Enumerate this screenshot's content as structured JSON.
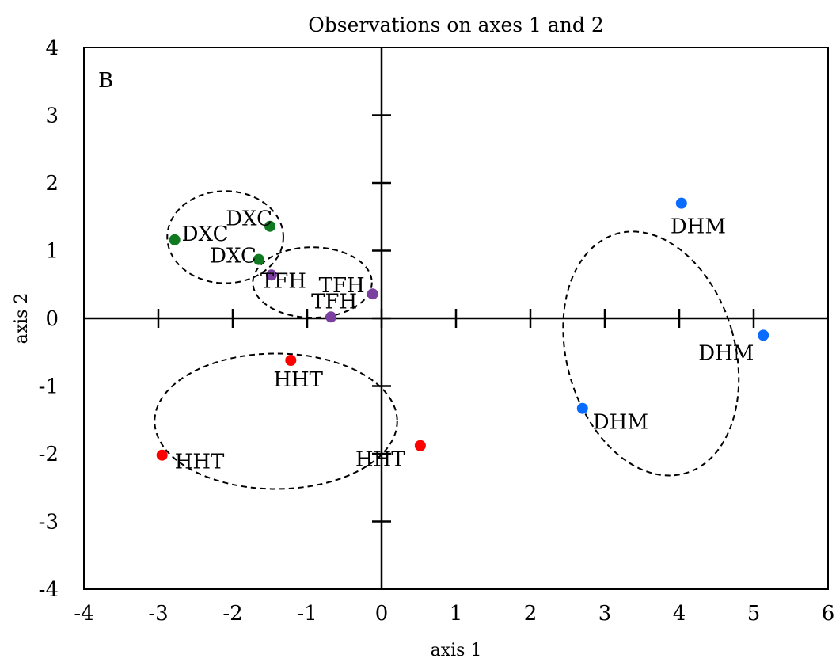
{
  "chart_data": {
    "type": "scatter",
    "title": "Observations on axes 1 and 2",
    "xlabel": "axis 1",
    "ylabel": "axis 2",
    "panel_label": "B",
    "xlim": [
      -4,
      6
    ],
    "ylim": [
      -4,
      4
    ],
    "xticks": [
      "-4",
      "-3",
      "-2",
      "-1",
      "0",
      "1",
      "2",
      "3",
      "4",
      "5",
      "6"
    ],
    "yticks": [
      "4",
      "3",
      "2",
      "1",
      "0",
      "-1",
      "-2",
      "-3",
      "-4"
    ],
    "xtick_values": [
      -4,
      -3,
      -2,
      -1,
      0,
      1,
      2,
      3,
      4,
      5,
      6
    ],
    "ytick_values": [
      4,
      3,
      2,
      1,
      0,
      -1,
      -2,
      -3,
      -4
    ],
    "grid": false,
    "points": [
      {
        "label": "DXC",
        "x": -2.78,
        "y": 1.16,
        "color": "#0f7a1f"
      },
      {
        "label": "DXC",
        "x": -1.5,
        "y": 1.36,
        "color": "#0f7a1f"
      },
      {
        "label": "DXC",
        "x": -1.65,
        "y": 0.87,
        "color": "#0f7a1f"
      },
      {
        "label": "TFH",
        "x": -1.48,
        "y": 0.64,
        "color": "#7b3fa0"
      },
      {
        "label": "TFH",
        "x": -0.12,
        "y": 0.36,
        "color": "#7b3fa0"
      },
      {
        "label": "TFH",
        "x": -0.68,
        "y": 0.02,
        "color": "#7b3fa0"
      },
      {
        "label": "HHT",
        "x": -1.22,
        "y": -0.62,
        "color": "#ff0000"
      },
      {
        "label": "HHT",
        "x": -2.95,
        "y": -2.02,
        "color": "#ff0000"
      },
      {
        "label": "HHT",
        "x": 0.52,
        "y": -1.88,
        "color": "#ff0000"
      },
      {
        "label": "DHM",
        "x": 4.03,
        "y": 1.7,
        "color": "#0a6cff"
      },
      {
        "label": "DHM",
        "x": 5.13,
        "y": -0.25,
        "color": "#0a6cff"
      },
      {
        "label": "DHM",
        "x": 2.7,
        "y": -1.33,
        "color": "#0a6cff"
      }
    ],
    "groups": [
      {
        "name": "DXC",
        "cx": -2.1,
        "cy": 1.2,
        "rx": 0.78,
        "ry": 0.68
      },
      {
        "name": "TFH",
        "cx": -0.93,
        "cy": 0.53,
        "rx": 0.8,
        "ry": 0.52
      },
      {
        "name": "HHT",
        "cx": -1.42,
        "cy": -1.52,
        "rx": 1.63,
        "ry": 1.0
      },
      {
        "name": "DHM",
        "cx": 3.62,
        "cy": -0.52,
        "rx": 1.13,
        "ry": 1.84,
        "rotation": -16
      }
    ]
  }
}
